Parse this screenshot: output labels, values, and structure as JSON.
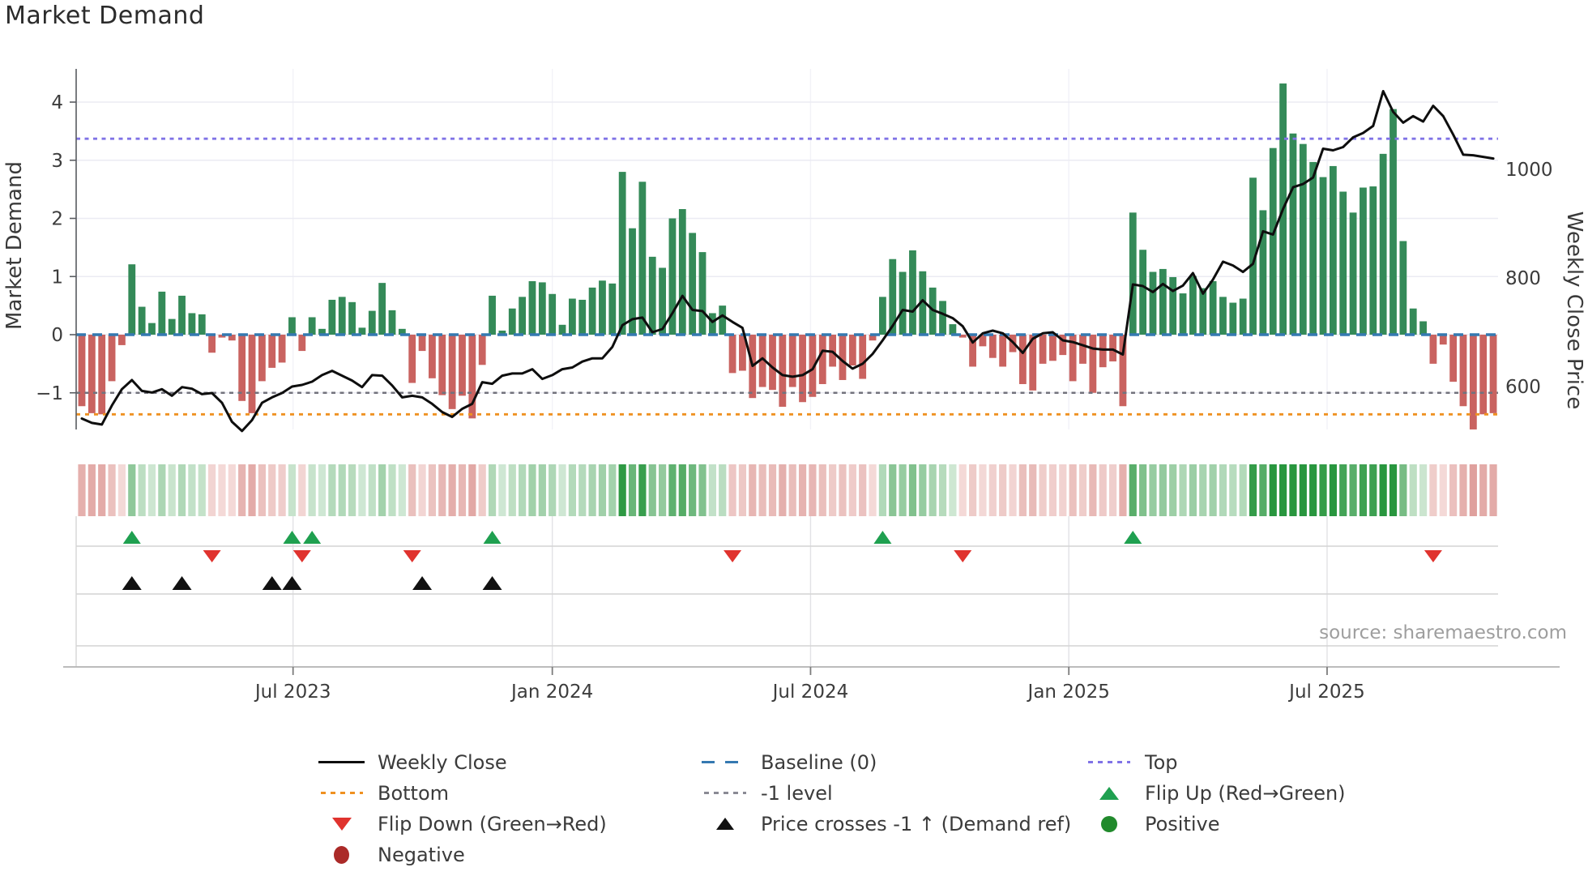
{
  "title": "Market Demand",
  "source_text": "source: sharemaestro.com",
  "axes": {
    "left_label": "Market Demand",
    "right_label": "Weekly Close Price",
    "left_ticks": [
      "4",
      "3",
      "2",
      "1",
      "0",
      "−1"
    ],
    "left_tick_values": [
      4,
      3,
      2,
      1,
      0,
      -1
    ],
    "right_ticks": [
      "1000",
      "800",
      "600"
    ],
    "right_tick_values": [
      1000,
      800,
      600
    ],
    "x_ticks": [
      {
        "label": "Jul 2023",
        "week": 21.1
      },
      {
        "label": "Jan 2024",
        "week": 47.0
      },
      {
        "label": "Jul 2024",
        "week": 72.8
      },
      {
        "label": "Jan 2025",
        "week": 98.6
      },
      {
        "label": "Jul 2025",
        "week": 124.4
      }
    ]
  },
  "chart_data": {
    "type": "combo: weekly bars (demand) + line (price) + heatmap strip + event markers",
    "x_unit": "weeks (Feb 2023 – Oct 2025)",
    "left_axis_range": [
      -1.9,
      4.55
    ],
    "ref_lines": {
      "baseline": 0,
      "top": 3.37,
      "bottom": -1.37,
      "minus_one": -1
    },
    "series": [
      {
        "name": "Market Demand",
        "type": "bar",
        "values": [
          -1.23,
          -1.35,
          -1.37,
          -0.8,
          -0.18,
          1.21,
          0.48,
          0.2,
          0.74,
          0.27,
          0.67,
          0.37,
          0.35,
          -0.31,
          -0.05,
          -0.1,
          -1.14,
          -1.35,
          -0.8,
          -0.57,
          -0.48,
          0.3,
          -0.28,
          0.3,
          0.1,
          0.6,
          0.65,
          0.56,
          0.12,
          0.41,
          0.89,
          0.42,
          0.1,
          -0.83,
          -0.28,
          -0.75,
          -1.04,
          -1.28,
          -1.05,
          -1.44,
          -0.52,
          0.67,
          0.07,
          0.45,
          0.65,
          0.92,
          0.9,
          0.7,
          0.17,
          0.62,
          0.6,
          0.81,
          0.93,
          0.88,
          2.8,
          1.83,
          2.63,
          1.34,
          1.15,
          2.0,
          2.16,
          1.75,
          1.42,
          0.37,
          0.5,
          -0.66,
          -0.62,
          -1.09,
          -0.9,
          -0.95,
          -1.24,
          -0.9,
          -1.16,
          -1.07,
          -0.85,
          -0.55,
          -0.78,
          -0.53,
          -0.76,
          -0.1,
          0.65,
          1.3,
          1.08,
          1.45,
          1.09,
          0.81,
          0.58,
          0.18,
          -0.05,
          -0.55,
          -0.2,
          -0.4,
          -0.55,
          -0.3,
          -0.85,
          -0.96,
          -0.5,
          -0.45,
          -0.35,
          -0.8,
          -0.5,
          -1.0,
          -0.56,
          -0.46,
          -1.23,
          2.1,
          1.46,
          1.08,
          1.13,
          0.99,
          0.71,
          1.01,
          0.8,
          0.92,
          0.65,
          0.55,
          0.62,
          2.7,
          2.14,
          3.21,
          4.32,
          3.46,
          3.28,
          2.97,
          2.71,
          2.9,
          2.46,
          2.1,
          2.53,
          2.55,
          3.11,
          3.88,
          1.61,
          0.45,
          0.23,
          -0.5,
          -0.17,
          -0.81,
          -1.23,
          -1.63,
          -1.37,
          -1.35
        ]
      },
      {
        "name": "Weekly Close",
        "type": "line",
        "values": [
          541,
          533,
          530,
          565,
          595,
          612,
          592,
          589,
          595,
          583,
          599,
          596,
          586,
          588,
          570,
          535,
          518,
          538,
          570,
          580,
          588,
          600,
          603,
          609,
          621,
          629,
          620,
          611,
          599,
          621,
          620,
          602,
          580,
          583,
          580,
          568,
          553,
          544,
          559,
          568,
          608,
          605,
          620,
          624,
          624,
          632,
          614,
          621,
          632,
          635,
          646,
          652,
          652,
          673,
          713,
          724,
          727,
          700,
          706,
          735,
          767,
          741,
          739,
          719,
          731,
          719,
          708,
          638,
          652,
          635,
          621,
          618,
          621,
          632,
          666,
          664,
          647,
          633,
          642,
          660,
          685,
          712,
          741,
          738,
          759,
          741,
          734,
          726,
          711,
          681,
          698,
          703,
          698,
          682,
          662,
          688,
          698,
          700,
          685,
          682,
          676,
          670,
          668,
          668,
          659,
          788,
          785,
          774,
          789,
          776,
          786,
          809,
          771,
          797,
          830,
          823,
          811,
          826,
          886,
          880,
          927,
          967,
          973,
          985,
          1038,
          1035,
          1041,
          1059,
          1067,
          1080,
          1144,
          1106,
          1086,
          1098,
          1088,
          1117,
          1098,
          1064,
          1027,
          1026,
          1023,
          1020
        ]
      }
    ],
    "markers": {
      "flip_up_weeks": [
        5,
        21,
        23,
        41,
        80,
        105
      ],
      "flip_down_weeks": [
        13,
        22,
        33,
        65,
        88,
        135
      ],
      "price_cross_weeks": [
        5,
        10,
        19,
        21,
        34,
        41
      ]
    }
  },
  "legend": {
    "items": [
      {
        "label": "Weekly Close",
        "swatch": "line-black"
      },
      {
        "label": "Baseline (0)",
        "swatch": "dash-blue"
      },
      {
        "label": "Top",
        "swatch": "dot-purple"
      },
      {
        "label": "Bottom",
        "swatch": "dot-orange"
      },
      {
        "label": "-1 level",
        "swatch": "dot-gray"
      },
      {
        "label": "Flip Up (Red→Green)",
        "swatch": "tri-up-green"
      },
      {
        "label": "Flip Down (Green→Red)",
        "swatch": "tri-down-red"
      },
      {
        "label": "Price crosses -1 ↑ (Demand ref)",
        "swatch": "tri-up-black"
      },
      {
        "label": "Positive",
        "swatch": "circle-green"
      },
      {
        "label": "Negative",
        "swatch": "circle-darkred"
      }
    ]
  },
  "colors": {
    "bar_positive": "#348a58",
    "bar_negative": "#c96360",
    "price_line": "#0e0e0e",
    "baseline": "#3579b1",
    "top_line": "#8073e6",
    "bottom_line": "#ef9120",
    "minus_one_line": "#72727c",
    "flip_up": "#1fa050",
    "flip_down": "#e0332e",
    "price_cross": "#111111",
    "heat_pos_dark": "#28963e",
    "heat_pos_light": "#d9ecdc",
    "heat_neg_dark": "#cd6f6b",
    "heat_neg_light": "#f6e0de"
  }
}
